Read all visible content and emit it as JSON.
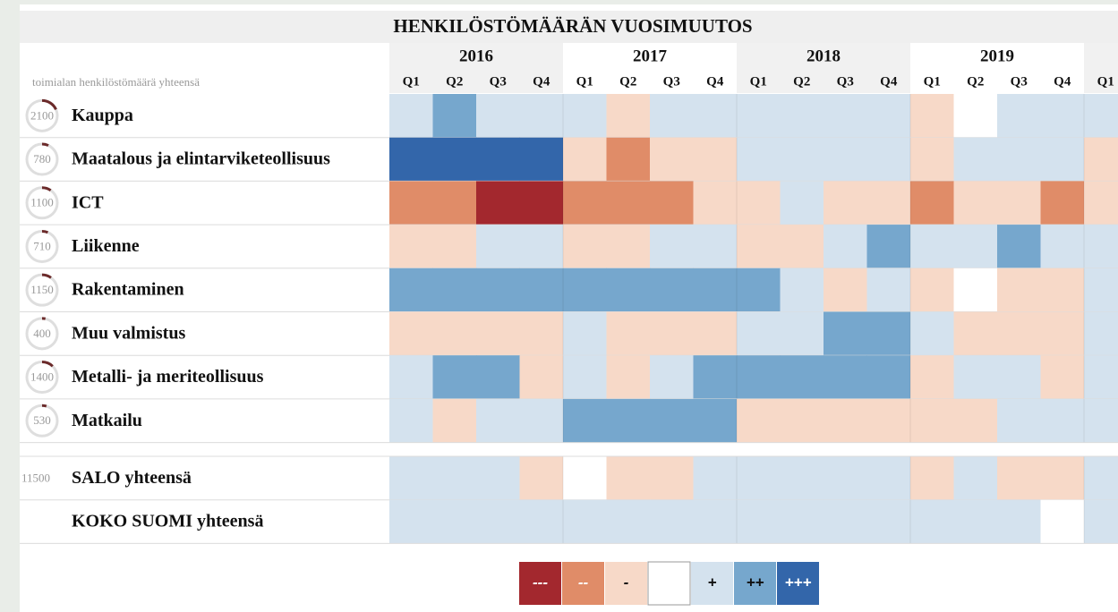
{
  "header": {
    "title": "HENKILÖSTÖMÄÄRÄN VUOSIMUUTOS",
    "column_label": "toimialan henkilöstömäärä yhteensä"
  },
  "years": [
    "2016",
    "2017",
    "2018",
    "2019"
  ],
  "quarters": [
    "Q1",
    "Q2",
    "Q3",
    "Q4",
    "Q1",
    "Q2",
    "Q3",
    "Q4",
    "Q1",
    "Q2",
    "Q3",
    "Q4",
    "Q1",
    "Q2",
    "Q3",
    "Q4",
    "Q1"
  ],
  "rows": [
    {
      "label": "Kauppa",
      "total": 2100,
      "values": [
        1,
        2,
        1,
        1,
        1,
        -1,
        1,
        1,
        1,
        1,
        1,
        1,
        -1,
        0,
        1,
        1,
        1
      ]
    },
    {
      "label": "Maatalous ja elintarviketeollisuus",
      "total": 780,
      "values": [
        3,
        3,
        3,
        3,
        -1,
        -2,
        -1,
        -1,
        1,
        1,
        1,
        1,
        -1,
        1,
        1,
        1,
        -1
      ]
    },
    {
      "label": "ICT",
      "total": 1100,
      "values": [
        -2,
        -2,
        -3,
        -3,
        -2,
        -2,
        -2,
        -1,
        -1,
        1,
        -1,
        -1,
        -2,
        -1,
        -1,
        -2,
        -1
      ]
    },
    {
      "label": "Liikenne",
      "total": 710,
      "values": [
        -1,
        -1,
        1,
        1,
        -1,
        -1,
        1,
        1,
        -1,
        -1,
        1,
        2,
        1,
        1,
        2,
        1,
        1
      ]
    },
    {
      "label": "Rakentaminen",
      "total": 1150,
      "values": [
        2,
        2,
        2,
        2,
        2,
        2,
        2,
        2,
        2,
        1,
        -1,
        1,
        -1,
        0,
        -1,
        -1,
        1
      ]
    },
    {
      "label": "Muu valmistus",
      "total": 400,
      "values": [
        -1,
        -1,
        -1,
        -1,
        1,
        -1,
        -1,
        -1,
        1,
        1,
        2,
        2,
        1,
        -1,
        -1,
        -1,
        1
      ]
    },
    {
      "label": "Metalli- ja meriteollisuus",
      "total": 1400,
      "values": [
        1,
        2,
        2,
        -1,
        1,
        -1,
        1,
        2,
        2,
        2,
        2,
        2,
        -1,
        1,
        1,
        -1,
        1
      ]
    },
    {
      "label": "Matkailu",
      "total": 530,
      "values": [
        1,
        -1,
        1,
        1,
        2,
        2,
        2,
        2,
        -1,
        -1,
        -1,
        -1,
        -1,
        -1,
        1,
        1,
        1
      ]
    }
  ],
  "totals": [
    {
      "label": "SALO yhteensä",
      "total": 11500,
      "values": [
        1,
        1,
        1,
        -1,
        0,
        -1,
        -1,
        1,
        1,
        1,
        1,
        1,
        -1,
        1,
        -1,
        -1,
        1
      ]
    },
    {
      "label": "KOKO SUOMI yhteensä",
      "values": [
        1,
        1,
        1,
        1,
        1,
        1,
        1,
        1,
        1,
        1,
        1,
        1,
        1,
        1,
        1,
        0,
        1
      ]
    }
  ],
  "legend": [
    {
      "value": -3,
      "label": "---",
      "color": "#a3282e"
    },
    {
      "value": -2,
      "label": "--",
      "color": "#e08c68"
    },
    {
      "value": -1,
      "label": "-",
      "color": "#f7d9c8"
    },
    {
      "value": 0,
      "color": "#ffffff"
    },
    {
      "value": 1,
      "label": "+",
      "color": "#d4e2ee"
    },
    {
      "value": 2,
      "label": "++",
      "color": "#76a7cd"
    },
    {
      "value": 3,
      "label": "+++",
      "color": "#3366aa"
    }
  ]
}
